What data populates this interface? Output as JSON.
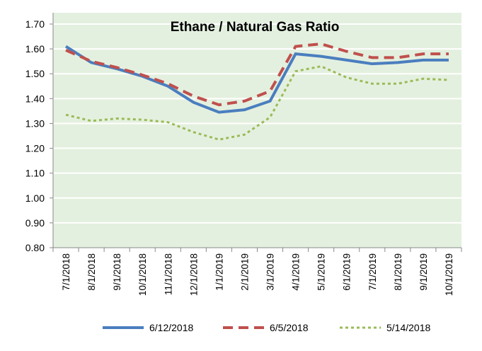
{
  "chart_data": {
    "type": "line",
    "title": "Ethane / Natural Gas Ratio",
    "xlabel": "",
    "ylabel": "",
    "ylim": [
      0.8,
      1.7
    ],
    "yticks": [
      "0.80",
      "0.90",
      "1.00",
      "1.10",
      "1.20",
      "1.30",
      "1.40",
      "1.50",
      "1.60",
      "1.70"
    ],
    "grid": true,
    "legend": "bottom",
    "categories": [
      "7/1/2018",
      "8/1/2018",
      "9/1/2018",
      "10/1/2018",
      "11/1/2018",
      "12/1/2018",
      "1/1/2019",
      "2/1/2019",
      "3/1/2019",
      "4/1/2019",
      "5/1/2019",
      "6/1/2019",
      "7/1/2019",
      "8/1/2019",
      "9/1/2019",
      "10/1/2019"
    ],
    "series": [
      {
        "name": "6/12/2018",
        "color": "#4a7ebf",
        "style": "solid",
        "values": [
          1.61,
          1.545,
          1.52,
          1.49,
          1.45,
          1.385,
          1.345,
          1.355,
          1.39,
          1.58,
          1.57,
          1.555,
          1.54,
          1.545,
          1.555,
          1.555
        ]
      },
      {
        "name": "6/5/2018",
        "color": "#c0504d",
        "style": "dash",
        "values": [
          1.595,
          1.55,
          1.525,
          1.495,
          1.46,
          1.41,
          1.375,
          1.39,
          1.43,
          1.61,
          1.62,
          1.59,
          1.565,
          1.565,
          1.58,
          1.58
        ]
      },
      {
        "name": "5/14/2018",
        "color": "#9bbb59",
        "style": "dot",
        "values": [
          1.335,
          1.31,
          1.32,
          1.315,
          1.305,
          1.265,
          1.235,
          1.255,
          1.325,
          1.51,
          1.53,
          1.485,
          1.46,
          1.46,
          1.48,
          1.475
        ]
      }
    ]
  }
}
